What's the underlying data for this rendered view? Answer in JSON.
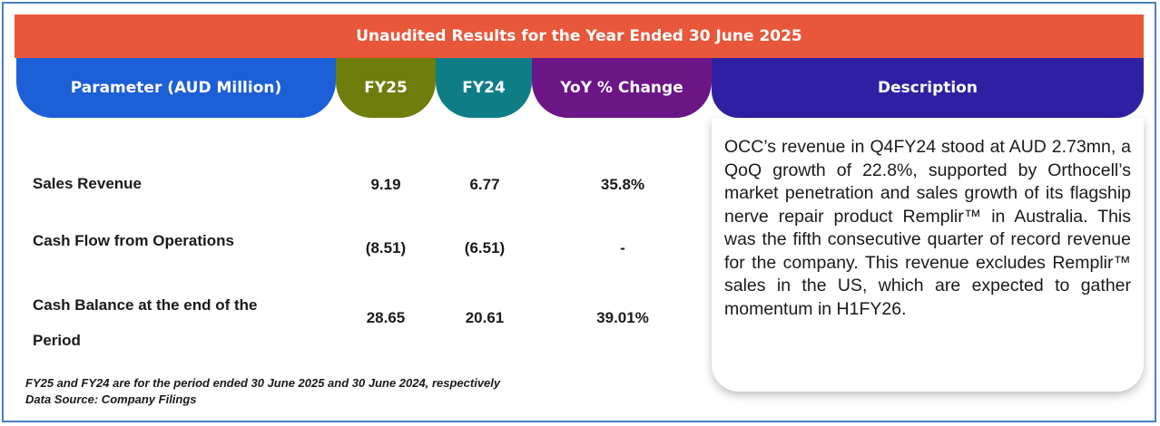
{
  "title": "Unaudited Results for the Year Ended 30 June 2025",
  "headers": {
    "parameter": "Parameter (AUD Million)",
    "fy25": "FY25",
    "fy24": "FY24",
    "yoy": "YoY % Change",
    "description": "Description"
  },
  "rows": [
    {
      "label": "Sales Revenue",
      "fy25": "9.19",
      "fy24": "6.77",
      "yoy": "35.8%"
    },
    {
      "label": "Cash Flow from Operations",
      "fy25": "(8.51)",
      "fy24": "(6.51)",
      "yoy": "-"
    },
    {
      "label_line1": "Cash Balance at the end of the",
      "label_line2": "Period",
      "fy25": "28.65",
      "fy24": "20.61",
      "yoy": "39.01%"
    }
  ],
  "description": "OCC’s revenue in Q4FY24 stood at AUD 2.73mn, a QoQ growth of 22.8%, supported by Orthocell’s market penetration and sales growth of its flagship nerve repair product Remplir™ in Australia. This was the fifth consecutive quarter of record revenue for the company. This revenue excludes Remplir™ sales in the US, which are expected to gather momentum in H1FY26.",
  "footnotes": {
    "period_note": "FY25 and FY24 are for the period ended 30 June 2025 and 30 June 2024, respectively",
    "source": "Data Source: Company Filings"
  },
  "colors": {
    "banner": "#e8573a",
    "parameter_header": "#1d5fd6",
    "fy25_header": "#6e7d0b",
    "fy24_header": "#0f7d86",
    "yoy_header": "#6b1587",
    "description_header": "#2f20a3",
    "frame_border": "#4a7fc9"
  }
}
